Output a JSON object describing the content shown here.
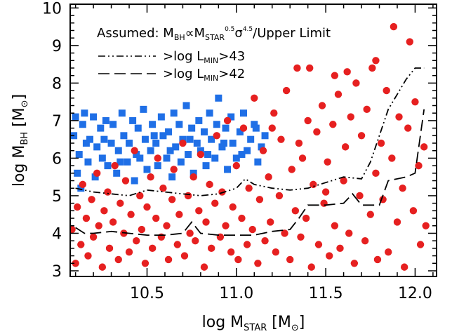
{
  "chart_data": {
    "type": "scatter",
    "annotation": {
      "prefix": "Assumed: M",
      "sub1": "BH",
      "mid1": "∝M",
      "sub2": "STAR",
      "sup2": "0.5",
      "mid2": "σ",
      "sup3": "4.5",
      "suffix": "/Upper Limit"
    },
    "legend_lines": [
      {
        "prefix": ">log L",
        "sub": "MIN",
        "suffix": ">43",
        "style": "dash-dot-dot"
      },
      {
        "prefix": ">log L",
        "sub": "MIN",
        "suffix": ">42",
        "style": "long-dash"
      }
    ],
    "xlabel": {
      "prefix": "log M",
      "sub": "STAR",
      "suffix": " [M",
      "sun": "⊙",
      "end": "]"
    },
    "ylabel": {
      "prefix": "log M",
      "sub": "BH",
      "suffix": " [M",
      "sun": "⊙",
      "end": "]"
    },
    "xlim": [
      10.07,
      12.12
    ],
    "ylim": [
      2.85,
      10.1
    ],
    "x_ticks": [
      10.5,
      11.0,
      11.5,
      12.0
    ],
    "x_tick_labels": [
      "10.5",
      "11.0",
      "11.5",
      "12.0"
    ],
    "y_ticks": [
      3,
      4,
      5,
      6,
      7,
      8,
      9,
      10
    ],
    "y_tick_labels": [
      "3",
      "4",
      "5",
      "6",
      "7",
      "8",
      "9",
      "10"
    ],
    "colors": {
      "squares": "#1f6fe6",
      "circles": "#e62020"
    },
    "series": [
      {
        "marker": "square",
        "color": "#1f6fe6",
        "points": [
          [
            10.09,
            6.6
          ],
          [
            10.1,
            7.1
          ],
          [
            10.12,
            6.1
          ],
          [
            10.13,
            5.2
          ],
          [
            10.15,
            7.2
          ],
          [
            10.14,
            6.9
          ],
          [
            10.17,
            5.9
          ],
          [
            10.18,
            6.5
          ],
          [
            10.2,
            7.1
          ],
          [
            10.22,
            6.3
          ],
          [
            10.21,
            5.5
          ],
          [
            10.24,
            6.8
          ],
          [
            10.25,
            6.0
          ],
          [
            10.27,
            7.0
          ],
          [
            10.28,
            5.8
          ],
          [
            10.3,
            6.4
          ],
          [
            10.31,
            6.9
          ],
          [
            10.33,
            5.6
          ],
          [
            10.34,
            6.2
          ],
          [
            10.36,
            7.2
          ],
          [
            10.37,
            6.6
          ],
          [
            10.39,
            5.9
          ],
          [
            10.4,
            6.4
          ],
          [
            10.42,
            7.0
          ],
          [
            10.43,
            5.4
          ],
          [
            10.45,
            6.8
          ],
          [
            10.46,
            6.0
          ],
          [
            10.48,
            7.3
          ],
          [
            10.49,
            6.5
          ],
          [
            10.5,
            5.7
          ],
          [
            10.52,
            6.2
          ],
          [
            10.53,
            6.9
          ],
          [
            10.55,
            6.4
          ],
          [
            10.56,
            5.8
          ],
          [
            10.58,
            7.1
          ],
          [
            10.59,
            6.6
          ],
          [
            10.61,
            6.0
          ],
          [
            10.62,
            6.7
          ],
          [
            10.64,
            5.5
          ],
          [
            10.65,
            7.2
          ],
          [
            10.66,
            6.3
          ],
          [
            10.68,
            6.9
          ],
          [
            10.69,
            5.9
          ],
          [
            10.7,
            6.5
          ],
          [
            10.72,
            7.4
          ],
          [
            10.73,
            6.1
          ],
          [
            10.75,
            6.8
          ],
          [
            10.76,
            5.6
          ],
          [
            10.78,
            6.4
          ],
          [
            10.79,
            7.0
          ],
          [
            10.8,
            6.2
          ],
          [
            10.82,
            6.7
          ],
          [
            10.83,
            5.8
          ],
          [
            10.85,
            7.2
          ],
          [
            10.86,
            6.5
          ],
          [
            10.88,
            6.0
          ],
          [
            10.89,
            6.9
          ],
          [
            10.9,
            7.6
          ],
          [
            10.92,
            6.3
          ],
          [
            10.94,
            6.8
          ],
          [
            10.95,
            5.7
          ],
          [
            10.97,
            7.1
          ],
          [
            10.98,
            6.4
          ],
          [
            11.0,
            6.0
          ],
          [
            11.02,
            6.7
          ],
          [
            11.04,
            7.2
          ],
          [
            11.06,
            6.2
          ],
          [
            11.08,
            6.5
          ],
          [
            11.1,
            6.9
          ],
          [
            11.12,
            5.9
          ],
          [
            11.14,
            6.3
          ],
          [
            11.16,
            6.6
          ],
          [
            10.11,
            5.6
          ],
          [
            10.16,
            6.4
          ],
          [
            10.26,
            6.5
          ],
          [
            10.35,
            5.9
          ],
          [
            10.44,
            6.1
          ],
          [
            10.54,
            6.6
          ],
          [
            10.63,
            6.2
          ],
          [
            10.74,
            6.5
          ],
          [
            10.84,
            6.1
          ],
          [
            10.93,
            6.4
          ],
          [
            11.03,
            6.1
          ],
          [
            11.11,
            6.8
          ]
        ]
      },
      {
        "marker": "circle",
        "color": "#e62020",
        "points": [
          [
            10.08,
            4.1
          ],
          [
            10.1,
            3.2
          ],
          [
            10.11,
            4.7
          ],
          [
            10.13,
            3.7
          ],
          [
            10.14,
            5.3
          ],
          [
            10.16,
            4.4
          ],
          [
            10.17,
            3.4
          ],
          [
            10.19,
            4.9
          ],
          [
            10.2,
            3.9
          ],
          [
            10.22,
            5.6
          ],
          [
            10.23,
            4.2
          ],
          [
            10.25,
            3.1
          ],
          [
            10.26,
            4.6
          ],
          [
            10.28,
            5.1
          ],
          [
            10.29,
            3.6
          ],
          [
            10.31,
            4.3
          ],
          [
            10.32,
            5.8
          ],
          [
            10.34,
            3.3
          ],
          [
            10.35,
            4.8
          ],
          [
            10.37,
            4.0
          ],
          [
            10.38,
            5.4
          ],
          [
            10.4,
            3.5
          ],
          [
            10.41,
            4.5
          ],
          [
            10.43,
            6.2
          ],
          [
            10.44,
            3.8
          ],
          [
            10.46,
            5.0
          ],
          [
            10.47,
            4.1
          ],
          [
            10.49,
            3.2
          ],
          [
            10.5,
            4.7
          ],
          [
            10.52,
            5.5
          ],
          [
            10.53,
            3.6
          ],
          [
            10.55,
            4.4
          ],
          [
            10.56,
            6.0
          ],
          [
            10.58,
            3.9
          ],
          [
            10.59,
            5.2
          ],
          [
            10.61,
            4.2
          ],
          [
            10.62,
            3.3
          ],
          [
            10.64,
            4.9
          ],
          [
            10.65,
            5.7
          ],
          [
            10.67,
            3.7
          ],
          [
            10.68,
            4.5
          ],
          [
            10.7,
            6.4
          ],
          [
            10.71,
            3.4
          ],
          [
            10.73,
            5.0
          ],
          [
            10.74,
            4.0
          ],
          [
            10.76,
            5.5
          ],
          [
            10.77,
            3.8
          ],
          [
            10.79,
            4.6
          ],
          [
            10.8,
            6.1
          ],
          [
            10.82,
            3.1
          ],
          [
            10.83,
            4.3
          ],
          [
            10.85,
            5.3
          ],
          [
            10.86,
            3.6
          ],
          [
            10.88,
            4.8
          ],
          [
            10.89,
            6.6
          ],
          [
            10.91,
            3.9
          ],
          [
            10.92,
            5.1
          ],
          [
            10.94,
            4.2
          ],
          [
            10.95,
            7.0
          ],
          [
            10.97,
            3.5
          ],
          [
            10.98,
            4.7
          ],
          [
            11.0,
            5.8
          ],
          [
            11.01,
            3.3
          ],
          [
            11.03,
            4.4
          ],
          [
            11.04,
            6.8
          ],
          [
            11.06,
            3.7
          ],
          [
            11.07,
            5.2
          ],
          [
            11.09,
            4.1
          ],
          [
            11.1,
            7.6
          ],
          [
            11.12,
            3.2
          ],
          [
            11.13,
            4.9
          ],
          [
            11.15,
            6.2
          ],
          [
            11.16,
            3.8
          ],
          [
            11.18,
            5.5
          ],
          [
            11.19,
            4.3
          ],
          [
            11.21,
            7.2
          ],
          [
            11.22,
            3.5
          ],
          [
            11.24,
            5.0
          ],
          [
            11.25,
            6.5
          ],
          [
            11.27,
            4.0
          ],
          [
            11.28,
            7.8
          ],
          [
            11.3,
            3.3
          ],
          [
            11.31,
            5.7
          ],
          [
            11.33,
            4.6
          ],
          [
            11.34,
            8.4
          ],
          [
            11.36,
            3.9
          ],
          [
            11.37,
            6.0
          ],
          [
            11.39,
            4.4
          ],
          [
            11.4,
            7.0
          ],
          [
            11.42,
            3.1
          ],
          [
            11.43,
            5.3
          ],
          [
            11.45,
            6.7
          ],
          [
            11.46,
            3.7
          ],
          [
            11.48,
            7.4
          ],
          [
            11.49,
            4.8
          ],
          [
            11.51,
            5.9
          ],
          [
            11.52,
            3.4
          ],
          [
            11.54,
            6.9
          ],
          [
            11.55,
            4.2
          ],
          [
            11.57,
            7.7
          ],
          [
            11.58,
            3.6
          ],
          [
            11.6,
            5.4
          ],
          [
            11.61,
            6.3
          ],
          [
            11.63,
            4.0
          ],
          [
            11.64,
            7.1
          ],
          [
            11.66,
            3.2
          ],
          [
            11.67,
            8.0
          ],
          [
            11.69,
            5.0
          ],
          [
            11.7,
            6.6
          ],
          [
            11.72,
            3.8
          ],
          [
            11.73,
            7.3
          ],
          [
            11.75,
            4.5
          ],
          [
            11.76,
            8.4
          ],
          [
            11.78,
            5.6
          ],
          [
            11.79,
            3.3
          ],
          [
            11.81,
            6.4
          ],
          [
            11.82,
            4.9
          ],
          [
            11.84,
            7.8
          ],
          [
            11.85,
            3.5
          ],
          [
            11.87,
            6.0
          ],
          [
            11.88,
            9.5
          ],
          [
            11.9,
            4.3
          ],
          [
            11.91,
            7.1
          ],
          [
            11.93,
            5.2
          ],
          [
            11.94,
            3.1
          ],
          [
            11.96,
            6.8
          ],
          [
            11.97,
            9.1
          ],
          [
            11.99,
            4.6
          ],
          [
            12.0,
            7.5
          ],
          [
            12.02,
            5.8
          ],
          [
            12.03,
            3.7
          ],
          [
            12.05,
            6.3
          ],
          [
            12.06,
            4.2
          ],
          [
            11.41,
            8.4
          ],
          [
            11.55,
            8.2
          ],
          [
            11.62,
            8.3
          ],
          [
            11.78,
            8.6
          ],
          [
            11.2,
            6.8
          ],
          [
            11.35,
            6.4
          ],
          [
            11.5,
            5.1
          ]
        ]
      }
    ],
    "curves": [
      {
        "name": ">log L_MIN>43",
        "style": "dash-dot-dot",
        "x": [
          10.1,
          10.2,
          10.3,
          10.4,
          10.5,
          10.6,
          10.7,
          10.8,
          10.9,
          11.0,
          11.05,
          11.1,
          11.2,
          11.3,
          11.4,
          11.5,
          11.6,
          11.7,
          11.75,
          11.8,
          11.85,
          11.9,
          11.95,
          12.0,
          12.05
        ],
        "y": [
          5.2,
          5.1,
          5.05,
          5.0,
          5.15,
          5.1,
          5.05,
          5.0,
          5.05,
          5.2,
          5.45,
          5.3,
          5.2,
          5.15,
          5.2,
          5.35,
          5.5,
          5.45,
          5.9,
          6.6,
          7.3,
          7.7,
          8.1,
          8.4,
          8.4
        ]
      },
      {
        "name": ">log L_MIN>42",
        "style": "long-dash",
        "x": [
          10.1,
          10.15,
          10.2,
          10.3,
          10.4,
          10.5,
          10.6,
          10.7,
          10.75,
          10.8,
          10.9,
          11.0,
          11.1,
          11.2,
          11.3,
          11.35,
          11.4,
          11.5,
          11.6,
          11.65,
          11.7,
          11.75,
          11.8,
          11.85,
          11.9,
          11.95,
          12.0,
          12.05
        ],
        "y": [
          4.15,
          4.0,
          4.0,
          4.05,
          4.0,
          3.95,
          3.95,
          4.0,
          4.3,
          4.0,
          3.95,
          3.95,
          3.95,
          4.05,
          4.1,
          4.4,
          4.75,
          4.75,
          4.8,
          5.05,
          4.75,
          4.75,
          4.75,
          5.4,
          5.45,
          5.5,
          5.6,
          7.3
        ]
      }
    ]
  }
}
